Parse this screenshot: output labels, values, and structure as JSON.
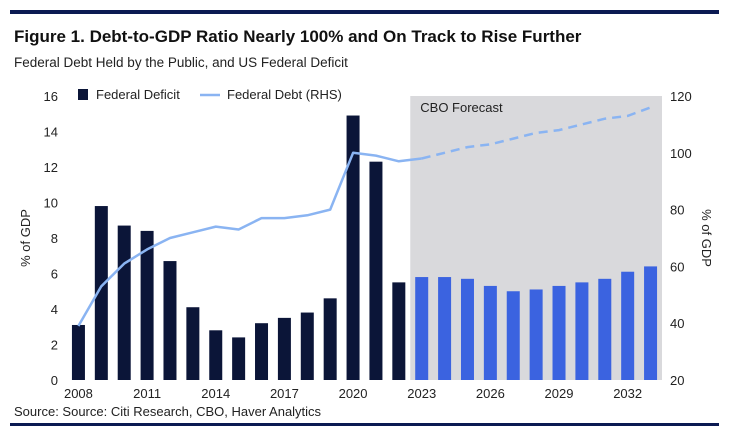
{
  "title": "Figure 1. Debt-to-GDP Ratio Nearly 100% and On Track to Rise Further",
  "subtitle": "Federal Debt Held by the Public, and US Federal Deficit",
  "source": "Source: Source: Citi Research, CBO, Haver Analytics",
  "colors": {
    "deficit_historical": "#0b1538",
    "deficit_forecast": "#3b63e0",
    "debt_line": "#8ab4f2",
    "forecast_shade": "#d9d9dc",
    "rule": "#0b1a52"
  },
  "chart_data": {
    "type": "bar",
    "x_tick_labels": [
      "2008",
      "2011",
      "2014",
      "2017",
      "2020",
      "2023",
      "2026",
      "2029",
      "2032"
    ],
    "ylabel": "% of GDP",
    "y2label": "% of GDP",
    "ylim": [
      0,
      16
    ],
    "y_ticks": [
      0,
      2,
      4,
      6,
      8,
      10,
      12,
      14,
      16
    ],
    "y2lim": [
      20,
      120
    ],
    "y2_ticks": [
      20,
      40,
      60,
      80,
      100,
      120
    ],
    "forecast_label": "CBO Forecast",
    "forecast_start_year": 2023,
    "grid": false,
    "legend_position": "top-left",
    "series": [
      {
        "name": "Federal Deficit",
        "type": "bar",
        "axis": "left",
        "x": [
          2008,
          2009,
          2010,
          2011,
          2012,
          2013,
          2014,
          2015,
          2016,
          2017,
          2018,
          2019,
          2020,
          2021,
          2022,
          2023,
          2024,
          2025,
          2026,
          2027,
          2028,
          2029,
          2030,
          2031,
          2032,
          2033
        ],
        "values": [
          3.1,
          9.8,
          8.7,
          8.4,
          6.7,
          4.1,
          2.8,
          2.4,
          3.2,
          3.5,
          3.8,
          4.6,
          14.9,
          12.3,
          5.5,
          5.8,
          5.8,
          5.7,
          5.3,
          5.0,
          5.1,
          5.3,
          5.5,
          5.7,
          6.1,
          6.4
        ]
      },
      {
        "name": "Federal Debt (RHS)",
        "type": "line",
        "axis": "right",
        "x": [
          2008,
          2009,
          2010,
          2011,
          2012,
          2013,
          2014,
          2015,
          2016,
          2017,
          2018,
          2019,
          2020,
          2021,
          2022,
          2023,
          2024,
          2025,
          2026,
          2027,
          2028,
          2029,
          2030,
          2031,
          2032,
          2033
        ],
        "values": [
          39,
          53,
          61,
          66,
          70,
          72,
          74,
          73,
          77,
          77,
          78,
          80,
          100,
          99,
          97,
          98,
          100,
          102,
          103,
          105,
          107,
          108,
          110,
          112,
          113,
          116
        ]
      }
    ]
  }
}
